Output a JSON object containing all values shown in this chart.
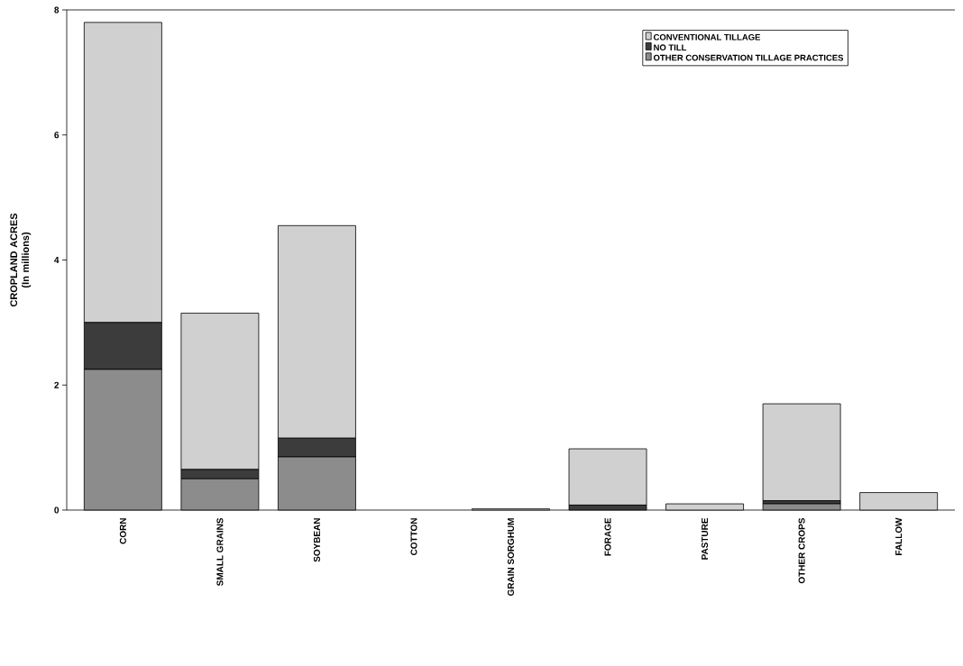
{
  "chart_data": {
    "type": "bar",
    "stacked": true,
    "ylabel": "CROPLAND ACRES (In millions)",
    "categories": [
      "CORN",
      "SMALL GRAINS",
      "SOYBEAN",
      "COTTON",
      "GRAIN SORGHUM",
      "FORAGE",
      "PASTURE",
      "OTHER CROPS",
      "FALLOW"
    ],
    "series": [
      {
        "name": "OTHER CONSERVATION TILLAGE PRACTICES",
        "color": "#8c8c8c",
        "values": [
          2.25,
          0.5,
          0.85,
          0,
          0,
          0,
          0,
          0.1,
          0
        ]
      },
      {
        "name": "NO TILL",
        "color": "#3c3c3c",
        "values": [
          0.75,
          0.15,
          0.3,
          0,
          0,
          0.08,
          0,
          0.05,
          0
        ]
      },
      {
        "name": "CONVENTIONAL TILLAGE",
        "color": "#d0d0d0",
        "values": [
          4.8,
          2.5,
          3.4,
          0,
          0.02,
          0.9,
          0.1,
          1.55,
          0.28
        ]
      }
    ],
    "ylim": [
      0,
      8
    ],
    "yticks": [
      0,
      2,
      4,
      6,
      8
    ],
    "grid": false,
    "legend": "top right"
  }
}
